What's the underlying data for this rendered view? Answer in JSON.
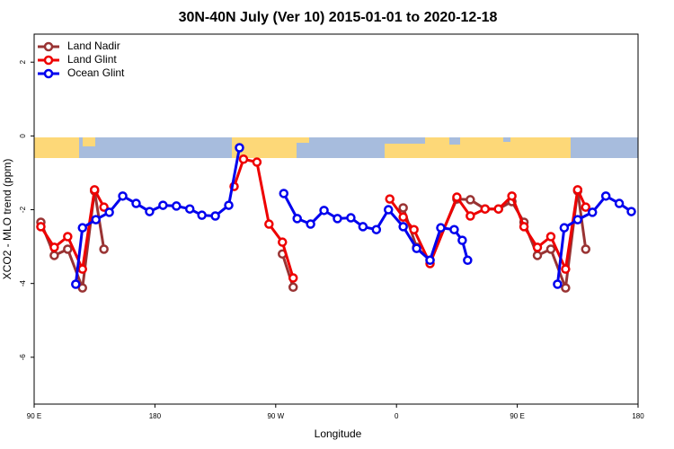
{
  "chart_data": {
    "type": "line",
    "title": "30N-40N July (Ver 10)   2015-01-01 to 2020-12-18",
    "x_label": "Longitude",
    "y_label": "XCO2 - MLO trend (ppm)",
    "xlim": [
      90,
      540
    ],
    "ylim": [
      2.76,
      -7.27
    ],
    "xticks": [
      {
        "value": 90,
        "label": "90 E"
      },
      {
        "value": 180,
        "label": "180"
      },
      {
        "value": 270,
        "label": "90 W"
      },
      {
        "value": 360,
        "label": "0"
      },
      {
        "value": 450,
        "label": "90 E"
      },
      {
        "value": 540,
        "label": "180"
      }
    ],
    "ylim_order": "bottom-top",
    "yticks": [
      2,
      0,
      -2,
      -4,
      -6
    ],
    "legend": "top-left",
    "series": [
      {
        "name": "Land Nadir",
        "color": "#993333",
        "x": [
          95,
          105,
          115,
          126,
          135,
          142,
          null,
          275,
          283,
          null,
          365,
          375,
          385,
          405,
          415,
          426,
          436,
          446,
          455,
          465,
          475,
          486,
          495,
          501
        ],
        "values": [
          -2.34,
          -3.24,
          -3.07,
          -4.12,
          -1.49,
          -3.07,
          null,
          -3.2,
          -4.1,
          null,
          -1.95,
          -3.02,
          -3.37,
          -1.71,
          -1.73,
          -1.98,
          -1.98,
          -1.78,
          -2.34,
          -3.24,
          -3.07,
          -4.12,
          -1.49,
          -3.07
        ]
      },
      {
        "name": "Land Glint",
        "color": "#ee0000",
        "x": [
          95,
          105,
          115,
          126,
          135,
          142,
          null,
          239,
          246,
          256,
          265,
          275,
          283,
          null,
          355,
          365,
          373,
          385,
          405,
          415,
          426,
          436,
          446,
          455,
          465,
          475,
          486,
          495,
          501
        ],
        "values": [
          -2.46,
          -3.02,
          -2.73,
          -3.61,
          -1.46,
          -1.93,
          null,
          -1.37,
          -0.63,
          -0.71,
          -2.39,
          -2.88,
          -3.85,
          null,
          -1.71,
          -2.2,
          -2.54,
          -3.46,
          -1.66,
          -2.17,
          -1.98,
          -1.98,
          -1.63,
          -2.46,
          -3.02,
          -2.73,
          -3.61,
          -1.46,
          -1.93
        ]
      },
      {
        "name": "Ocean Glint",
        "color": "#0000ee",
        "x": [
          121,
          126,
          136,
          146,
          156,
          166,
          176,
          186,
          196,
          206,
          215,
          225,
          235,
          243,
          null,
          276,
          286,
          296,
          306,
          316,
          326,
          335,
          345,
          354,
          365,
          375,
          385,
          393,
          403,
          409,
          413,
          null,
          480,
          485,
          495,
          506,
          516,
          526,
          535
        ],
        "values": [
          -4.02,
          -2.49,
          -2.27,
          -2.07,
          -1.63,
          -1.83,
          -2.05,
          -1.88,
          -1.9,
          -1.98,
          -2.15,
          -2.17,
          -1.88,
          -0.32,
          null,
          -1.56,
          -2.24,
          -2.39,
          -2.02,
          -2.24,
          -2.22,
          -2.46,
          -2.54,
          -2.0,
          -2.46,
          -3.05,
          -3.37,
          -2.49,
          -2.54,
          -2.83,
          -3.37,
          null,
          -4.02,
          -2.49,
          -2.27,
          -2.07,
          -1.63,
          -1.83,
          -2.05
        ]
      }
    ]
  }
}
